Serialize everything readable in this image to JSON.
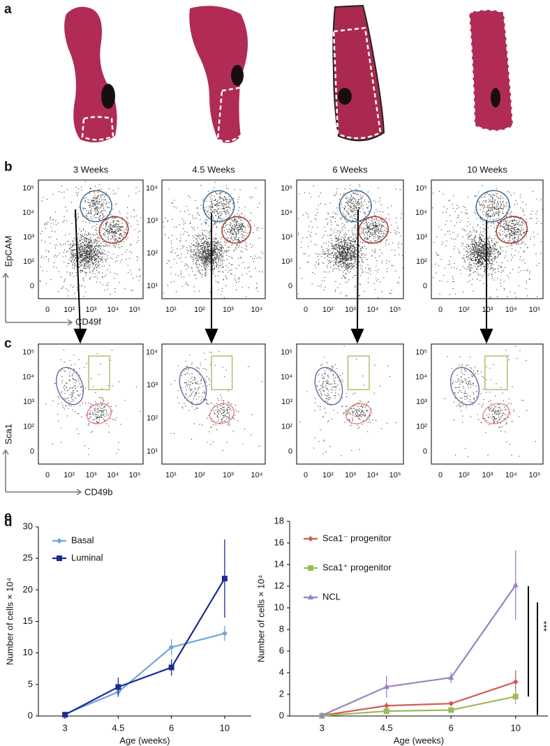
{
  "figure": {
    "panel_labels": {
      "a": "a",
      "b": "b",
      "c": "c"
    },
    "flow_b": {
      "x_label": "CD49f",
      "y_label": "EpCAM",
      "titles": [
        "3 Weeks",
        "4.5 Weeks",
        "6 Weeks",
        "10 Weeks"
      ],
      "xticks": [
        [
          "0",
          "10²",
          "10³",
          "10⁴",
          "10⁵"
        ],
        [
          "10¹",
          "10²",
          "10³",
          "10⁴"
        ],
        [
          "0",
          "10²",
          "10³",
          "10⁴",
          "10⁵"
        ],
        [
          "0",
          "10²",
          "10³",
          "10⁴",
          "10⁵"
        ]
      ],
      "yticks": [
        [
          "0",
          "10²",
          "10³",
          "10⁴",
          "10⁵"
        ],
        [
          "10¹",
          "10²",
          "10³",
          "10⁴"
        ],
        [
          "0",
          "10²",
          "10³",
          "10⁴",
          "10⁵"
        ],
        [
          "0",
          "10²",
          "10³",
          "10⁴",
          "10⁵"
        ]
      ]
    },
    "flow_c": {
      "x_label": "CD49b",
      "y_label": "Sca1",
      "xticks": [
        [
          "0",
          "10²",
          "10³",
          "10⁴",
          "10⁵"
        ],
        [
          "10¹",
          "10²",
          "10³",
          "10⁴"
        ],
        [
          "0",
          "10²",
          "10³",
          "10⁴",
          "10⁵"
        ],
        [
          "0",
          "10²",
          "10³",
          "10⁴",
          "10⁵"
        ]
      ],
      "yticks": [
        [
          "0",
          "10²",
          "10³",
          "10⁴",
          "10⁵"
        ],
        [
          "10¹",
          "10²",
          "10³",
          "10⁴"
        ],
        [
          "0",
          "10²",
          "10³",
          "10⁴",
          "10⁵"
        ],
        [
          "0",
          "10²",
          "10³",
          "10⁴",
          "10⁵"
        ]
      ]
    }
  },
  "chart_data": [
    {
      "type": "line",
      "panel_label": "d",
      "x_label": "Age (weeks)",
      "y_label": "Number of cells × 10⁴",
      "categories": [
        "3",
        "4.5",
        "6",
        "10"
      ],
      "ylim": [
        0,
        30
      ],
      "yticks": [
        0,
        5,
        10,
        15,
        20,
        25,
        30
      ],
      "legend": "upper left",
      "series": [
        {
          "name": "Basal",
          "color": "#6fa6d8",
          "marker": "diamond",
          "values": [
            0.3,
            3.8,
            10.9,
            13.1
          ],
          "errors": [
            0.3,
            0.8,
            1.3,
            1.2
          ]
        },
        {
          "name": "Luminal",
          "color": "#1c2a94",
          "marker": "square",
          "values": [
            0.2,
            4.6,
            7.7,
            21.8
          ],
          "errors": [
            0.2,
            1.5,
            1.3,
            6.2
          ]
        }
      ]
    },
    {
      "type": "line",
      "panel_label": "e",
      "x_label": "Age (weeks)",
      "y_label": "Number of cells × 10⁴",
      "categories": [
        "3",
        "4.5",
        "6",
        "10"
      ],
      "ylim": [
        0,
        18
      ],
      "yticks": [
        0,
        2,
        4,
        6,
        8,
        10,
        12,
        14,
        16,
        18
      ],
      "legend": "upper left",
      "significance": "***",
      "series": [
        {
          "name": "Sca1⁻ progenitor",
          "color": "#d45b55",
          "marker": "diamond",
          "values": [
            0.05,
            0.95,
            1.15,
            3.15
          ],
          "errors": [
            0.05,
            0.3,
            0.2,
            1.1
          ]
        },
        {
          "name": "Sca1⁺ progenitor",
          "color": "#9bbb59",
          "marker": "square",
          "values": [
            0.02,
            0.45,
            0.55,
            1.8
          ],
          "errors": [
            0.02,
            0.2,
            0.15,
            0.7
          ]
        },
        {
          "name": "NCL",
          "color": "#9b80c0",
          "marker": "triangle",
          "values": [
            0.05,
            2.7,
            3.55,
            12.1
          ],
          "errors": [
            0.05,
            1.0,
            0.5,
            3.2
          ]
        }
      ]
    }
  ]
}
